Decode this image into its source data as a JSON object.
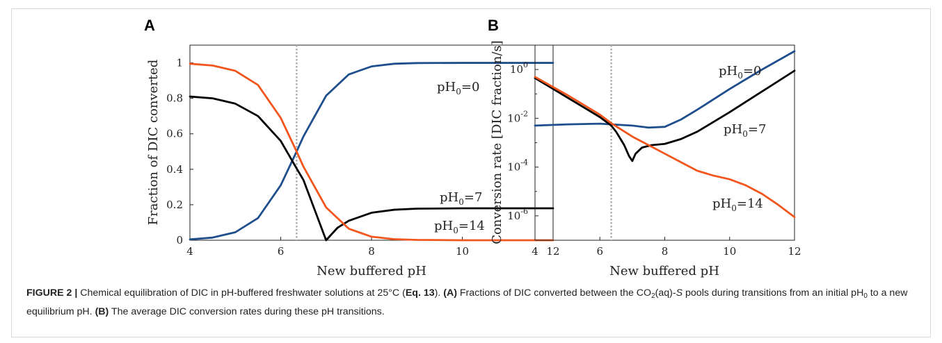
{
  "colors": {
    "blue": "#1f4e8c",
    "black": "#000000",
    "orange": "#f2561d",
    "ref_line": "#b0b0b0"
  },
  "panels": [
    {
      "letter": "A",
      "xlabel": "New buffered pH",
      "ylabel": "Fraction of DIC converted",
      "xticks": [
        "4",
        "6",
        "8",
        "10",
        "12"
      ],
      "yticks": [
        "0",
        "0.2",
        "0.4",
        "0.6",
        "0.8",
        "1"
      ]
    },
    {
      "letter": "B",
      "xlabel": "New buffered pH",
      "ylabel": "Conversion rate [DIC fraction/s]",
      "xticks": [
        "4",
        "6",
        "8",
        "10",
        "12"
      ],
      "ytick_exponents": [
        "-6",
        "-4",
        "-2",
        "0"
      ]
    }
  ],
  "series_labels": {
    "ph0_text": "pH",
    "ph0_sub": "0",
    "values": [
      "=0",
      "=7",
      "=14"
    ]
  },
  "chart_data": [
    {
      "type": "line",
      "xlabel": "New buffered pH",
      "ylabel": "Fraction of DIC converted",
      "xlim": [
        4,
        12
      ],
      "ylim": [
        0,
        1.1
      ],
      "reference_line_x": 6.35,
      "series": [
        {
          "name": "pH0=0",
          "color": "#1f4e8c",
          "x": [
            4,
            4.5,
            5,
            5.5,
            6,
            6.35,
            6.5,
            7,
            7.5,
            8,
            8.5,
            9,
            10,
            11,
            12
          ],
          "y": [
            0.005,
            0.015,
            0.045,
            0.125,
            0.31,
            0.5,
            0.585,
            0.815,
            0.935,
            0.98,
            0.995,
            0.999,
            1.0,
            1.0,
            1.0
          ]
        },
        {
          "name": "pH0=7",
          "color": "#000000",
          "x": [
            4,
            4.5,
            5,
            5.5,
            6,
            6.35,
            6.5,
            6.75,
            7,
            7.25,
            7.5,
            8,
            8.5,
            9,
            10,
            11,
            12
          ],
          "y": [
            0.81,
            0.8,
            0.77,
            0.7,
            0.56,
            0.405,
            0.34,
            0.17,
            0.0,
            0.07,
            0.11,
            0.155,
            0.172,
            0.178,
            0.18,
            0.18,
            0.18
          ]
        },
        {
          "name": "pH0=14",
          "color": "#f2561d",
          "x": [
            4,
            4.5,
            5,
            5.5,
            6,
            6.35,
            6.5,
            7,
            7.5,
            8,
            8.5,
            9,
            10,
            11,
            12
          ],
          "y": [
            0.995,
            0.985,
            0.955,
            0.875,
            0.69,
            0.5,
            0.415,
            0.185,
            0.065,
            0.02,
            0.006,
            0.002,
            0.0,
            0.0,
            0.0
          ]
        }
      ]
    },
    {
      "type": "line",
      "xlabel": "New buffered pH",
      "ylabel": "Conversion rate [DIC fraction/s]",
      "xlim": [
        4,
        12
      ],
      "yscale": "log",
      "ylim_exponent": [
        -7,
        1
      ],
      "reference_line_x": 6.35,
      "series": [
        {
          "name": "pH0=0",
          "color": "#1f4e8c",
          "x": [
            4,
            5,
            6,
            6.35,
            7,
            7.5,
            8,
            8.5,
            9,
            10,
            11,
            12
          ],
          "log10_y": [
            -2.3,
            -2.25,
            -2.22,
            -2.25,
            -2.3,
            -2.38,
            -2.35,
            -2.05,
            -1.65,
            -0.8,
            0.0,
            0.75
          ]
        },
        {
          "name": "pH0=7",
          "color": "#000000",
          "x": [
            4,
            4.5,
            5,
            5.5,
            6,
            6.35,
            6.5,
            6.75,
            6.9,
            7.0,
            7.1,
            7.3,
            7.6,
            8,
            8.5,
            9,
            10,
            11,
            12
          ],
          "log10_y": [
            -0.35,
            -0.75,
            -1.15,
            -1.55,
            -1.95,
            -2.3,
            -2.55,
            -3.1,
            -3.55,
            -3.75,
            -3.45,
            -3.2,
            -3.1,
            -3.05,
            -2.85,
            -2.55,
            -1.75,
            -0.9,
            -0.05
          ]
        },
        {
          "name": "pH0=14",
          "color": "#f2561d",
          "x": [
            4,
            5,
            6,
            6.35,
            7,
            7.5,
            8,
            8.5,
            9,
            9.5,
            10,
            10.5,
            11,
            11.5,
            12
          ],
          "log10_y": [
            -0.3,
            -1.05,
            -1.85,
            -2.2,
            -2.75,
            -3.1,
            -3.45,
            -3.8,
            -4.15,
            -4.35,
            -4.5,
            -4.75,
            -5.1,
            -5.55,
            -6.05
          ]
        }
      ]
    }
  ],
  "caption": {
    "label": "FIGURE 2 |",
    "t1": " Chemical equilibration of DIC in pH-buffered freshwater solutions at 25°C (",
    "eq": "Eq. 13",
    "t2": "). ",
    "a": "(A)",
    "t3": " Fractions of DIC converted between the CO",
    "co2_sub": "2",
    "t4": "(aq)-",
    "s": "S",
    "t5": " pools during transitions from an initial pH",
    "ph_sub": "0",
    "t6": " to a new equilibrium pH. ",
    "b": "(B)",
    "t7": " The average DIC conversion rates during these pH transitions."
  }
}
